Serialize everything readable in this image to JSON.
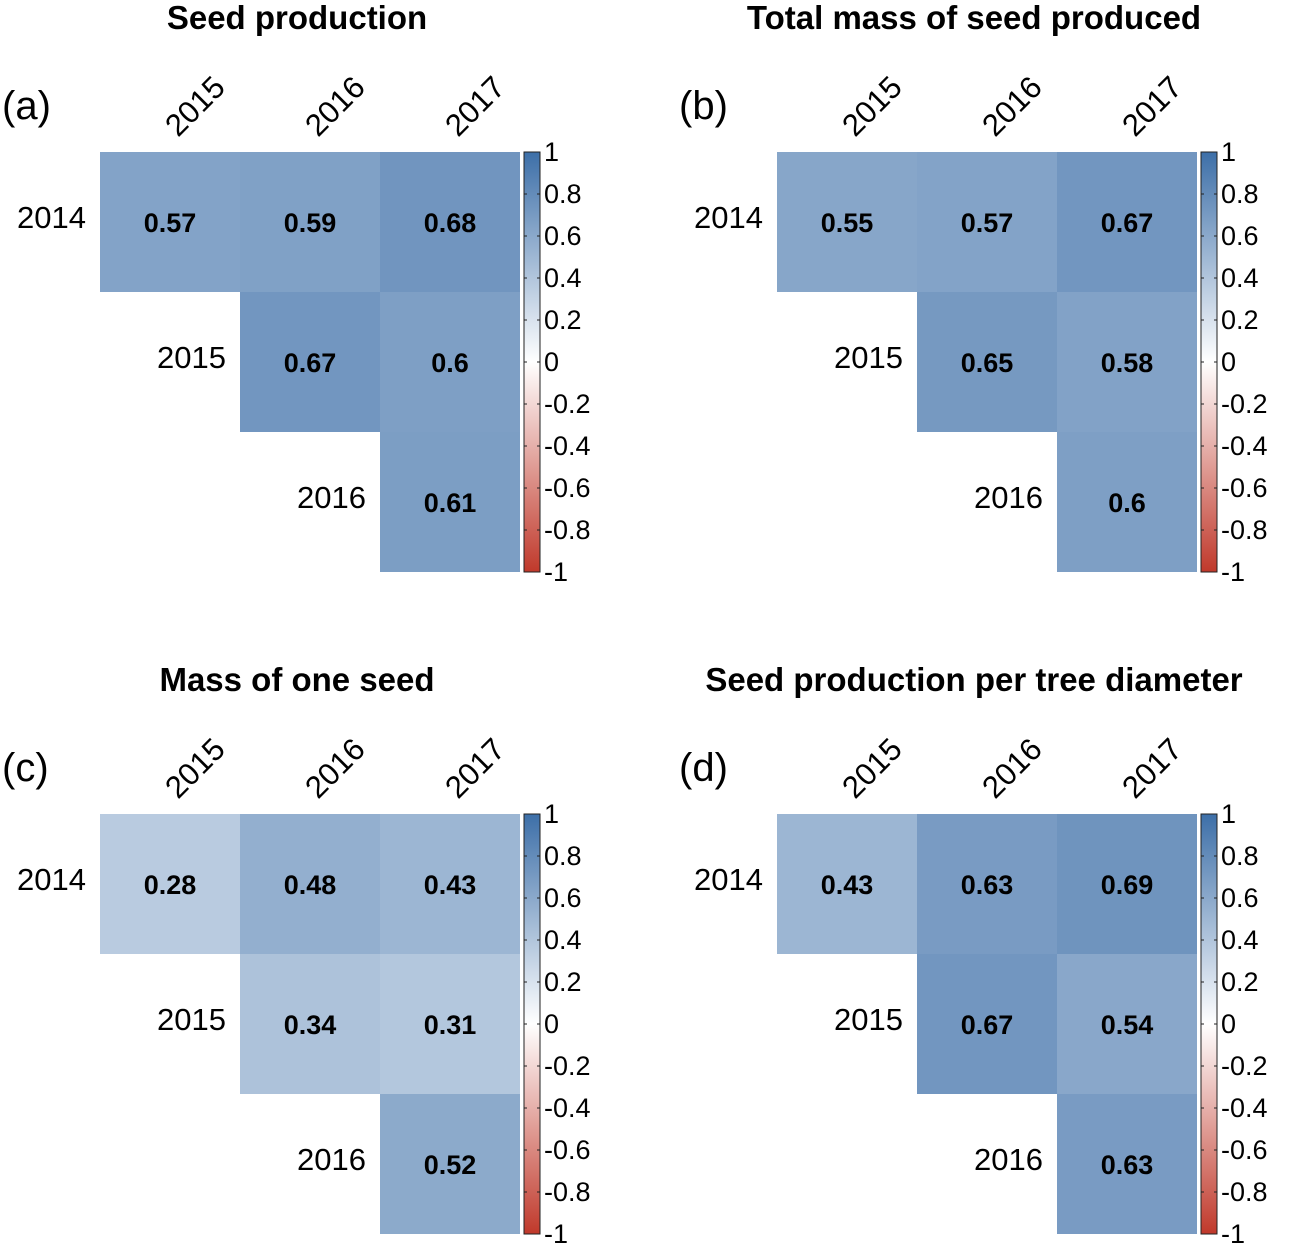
{
  "chart_data": [
    {
      "type": "heatmap",
      "panel_label": "(a)",
      "title": "Seed production",
      "row_labels": [
        "2014",
        "2015",
        "2016"
      ],
      "col_labels": [
        "2015",
        "2016",
        "2017"
      ],
      "values": [
        [
          0.57,
          0.59,
          0.68
        ],
        [
          null,
          0.67,
          0.6
        ],
        [
          null,
          null,
          0.61
        ]
      ],
      "value_labels": [
        [
          "0.57",
          "0.59",
          "0.68"
        ],
        [
          "",
          "0.67",
          "0.6"
        ],
        [
          "",
          "",
          "0.61"
        ]
      ],
      "colorbar": {
        "range": [
          -1,
          1
        ],
        "ticks": [
          "1",
          "0.8",
          "0.6",
          "0.4",
          "0.2",
          "0",
          "-0.2",
          "-0.4",
          "-0.6",
          "-0.8",
          "-1"
        ],
        "low_color": "#c0392b",
        "mid_color": "#ffffff",
        "high_color": "#3d6fa8"
      }
    },
    {
      "type": "heatmap",
      "panel_label": "(b)",
      "title": "Total mass of seed produced",
      "row_labels": [
        "2014",
        "2015",
        "2016"
      ],
      "col_labels": [
        "2015",
        "2016",
        "2017"
      ],
      "values": [
        [
          0.55,
          0.57,
          0.67
        ],
        [
          null,
          0.65,
          0.58
        ],
        [
          null,
          null,
          0.6
        ]
      ],
      "value_labels": [
        [
          "0.55",
          "0.57",
          "0.67"
        ],
        [
          "",
          "0.65",
          "0.58"
        ],
        [
          "",
          "",
          "0.6"
        ]
      ],
      "colorbar": {
        "range": [
          -1,
          1
        ],
        "ticks": [
          "1",
          "0.8",
          "0.6",
          "0.4",
          "0.2",
          "0",
          "-0.2",
          "-0.4",
          "-0.6",
          "-0.8",
          "-1"
        ],
        "low_color": "#c0392b",
        "mid_color": "#ffffff",
        "high_color": "#3d6fa8"
      }
    },
    {
      "type": "heatmap",
      "panel_label": "(c)",
      "title": "Mass of one seed",
      "row_labels": [
        "2014",
        "2015",
        "2016"
      ],
      "col_labels": [
        "2015",
        "2016",
        "2017"
      ],
      "values": [
        [
          0.28,
          0.48,
          0.43
        ],
        [
          null,
          0.34,
          0.31
        ],
        [
          null,
          null,
          0.52
        ]
      ],
      "value_labels": [
        [
          "0.28",
          "0.48",
          "0.43"
        ],
        [
          "",
          "0.34",
          "0.31"
        ],
        [
          "",
          "",
          "0.52"
        ]
      ],
      "colorbar": {
        "range": [
          -1,
          1
        ],
        "ticks": [
          "1",
          "0.8",
          "0.6",
          "0.4",
          "0.2",
          "0",
          "-0.2",
          "-0.4",
          "-0.6",
          "-0.8",
          "-1"
        ],
        "low_color": "#c0392b",
        "mid_color": "#ffffff",
        "high_color": "#3d6fa8"
      }
    },
    {
      "type": "heatmap",
      "panel_label": "(d)",
      "title": "Seed production per tree diameter",
      "row_labels": [
        "2014",
        "2015",
        "2016"
      ],
      "col_labels": [
        "2015",
        "2016",
        "2017"
      ],
      "values": [
        [
          0.43,
          0.63,
          0.69
        ],
        [
          null,
          0.67,
          0.54
        ],
        [
          null,
          null,
          0.63
        ]
      ],
      "value_labels": [
        [
          "0.43",
          "0.63",
          "0.69"
        ],
        [
          "",
          "0.67",
          "0.54"
        ],
        [
          "",
          "",
          "0.63"
        ]
      ],
      "colorbar": {
        "range": [
          -1,
          1
        ],
        "ticks": [
          "1",
          "0.8",
          "0.6",
          "0.4",
          "0.2",
          "0",
          "-0.2",
          "-0.4",
          "-0.6",
          "-0.8",
          "-1"
        ],
        "low_color": "#c0392b",
        "mid_color": "#ffffff",
        "high_color": "#3d6fa8"
      }
    }
  ]
}
